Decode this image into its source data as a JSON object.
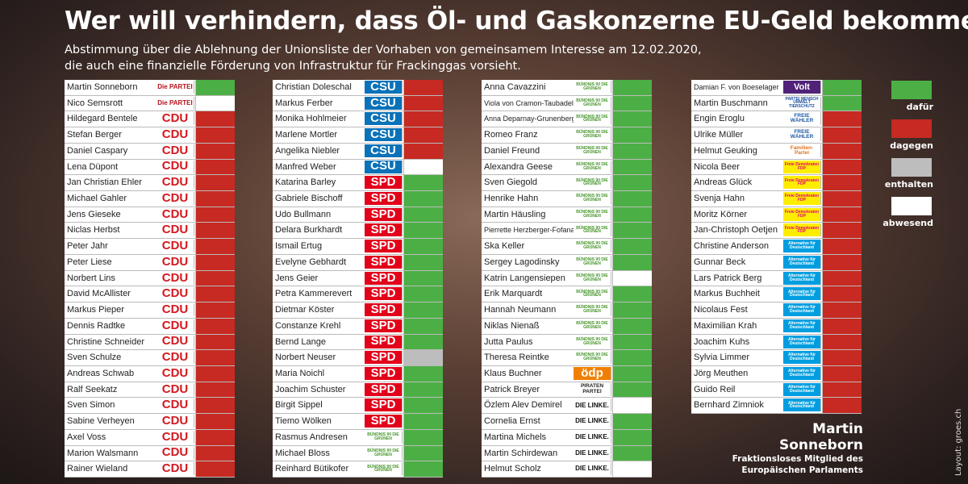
{
  "header": {
    "title": "Wer will verhindern, dass Öl- und Gaskonzerne EU-Geld bekommen?",
    "subtitle": [
      "Abstimmung über die Ablehnung der Unionsliste der Vorhaben von gemeinsamem Interesse am 12.02.2020,",
      "die auch eine finanzielle Förderung von Infrastruktur für Frackinggas vorsieht."
    ]
  },
  "legend": [
    {
      "label": "dafür",
      "color": "#4caf45"
    },
    {
      "label": "dagegen",
      "color": "#c62a22"
    },
    {
      "label": "enthalten",
      "color": "#bdbdbd"
    },
    {
      "label": "abwesend",
      "color": "#ffffff"
    }
  ],
  "parties": [
    {
      "label": "Die PARTEI",
      "color": "#b5121b",
      "bg": "#ffffff"
    },
    {
      "label": "CDU",
      "color": "#d4181f",
      "bg": "#ffffff"
    },
    {
      "label": "CSU",
      "color": "#ffffff",
      "bg": "#0a72b8"
    },
    {
      "label": "SPD",
      "color": "#ffffff",
      "bg": "#e2001a"
    },
    {
      "label": "BÜNDNIS 90 DIE GRÜNEN",
      "color": "#46962b",
      "bg": "#ffffff"
    },
    {
      "label": "ödp",
      "color": "#ffffff",
      "bg": "#f07f00"
    },
    {
      "label": "PIRATEN PARTEI",
      "color": "#222222",
      "bg": "#ffffff"
    },
    {
      "label": "DIE LINKE.",
      "color": "#111111",
      "bg": "#ffffff"
    },
    {
      "label": "Volt",
      "color": "#ffffff",
      "bg": "#502379"
    },
    {
      "label": "PARTEI MENSCH UMWELT TIERSCHUTZ",
      "color": "#1b4f9c",
      "bg": "#ffffff"
    },
    {
      "label": "FREIE WÄHLER",
      "color": "#1f5aa6",
      "bg": "#ffffff"
    },
    {
      "label": "Familien-Partei",
      "color": "#e2711d",
      "bg": "#ffffff"
    },
    {
      "label": "Freie Demokraten FDP",
      "color": "#e5007d",
      "bg": "#ffed00"
    },
    {
      "label": "Alternative für Deutschland",
      "color": "#ffffff",
      "bg": "#009ee0"
    }
  ],
  "columns": [
    {
      "rows": [
        {
          "name": "Martin Sonneborn",
          "party": "Die PARTEI",
          "vote": "dafür"
        },
        {
          "name": "Nico Semsrott",
          "party": "Die PARTEI",
          "vote": "abwesend"
        },
        {
          "name": "Hildegard Bentele",
          "party": "CDU",
          "vote": "dagegen"
        },
        {
          "name": "Stefan Berger",
          "party": "CDU",
          "vote": "dagegen"
        },
        {
          "name": "Daniel Caspary",
          "party": "CDU",
          "vote": "dagegen"
        },
        {
          "name": "Lena Düpont",
          "party": "CDU",
          "vote": "dagegen"
        },
        {
          "name": "Jan Christian Ehler",
          "party": "CDU",
          "vote": "dagegen"
        },
        {
          "name": "Michael Gahler",
          "party": "CDU",
          "vote": "dagegen"
        },
        {
          "name": "Jens Gieseke",
          "party": "CDU",
          "vote": "dagegen"
        },
        {
          "name": "Niclas Herbst",
          "party": "CDU",
          "vote": "dagegen"
        },
        {
          "name": "Peter Jahr",
          "party": "CDU",
          "vote": "dagegen"
        },
        {
          "name": "Peter Liese",
          "party": "CDU",
          "vote": "dagegen"
        },
        {
          "name": "Norbert Lins",
          "party": "CDU",
          "vote": "dagegen"
        },
        {
          "name": "David McAllister",
          "party": "CDU",
          "vote": "dagegen"
        },
        {
          "name": "Markus Pieper",
          "party": "CDU",
          "vote": "dagegen"
        },
        {
          "name": "Dennis Radtke",
          "party": "CDU",
          "vote": "dagegen"
        },
        {
          "name": "Christine Schneider",
          "party": "CDU",
          "vote": "dagegen"
        },
        {
          "name": "Sven Schulze",
          "party": "CDU",
          "vote": "dagegen"
        },
        {
          "name": "Andreas Schwab",
          "party": "CDU",
          "vote": "dagegen"
        },
        {
          "name": "Ralf Seekatz",
          "party": "CDU",
          "vote": "dagegen"
        },
        {
          "name": "Sven Simon",
          "party": "CDU",
          "vote": "dagegen"
        },
        {
          "name": "Sabine Verheyen",
          "party": "CDU",
          "vote": "dagegen"
        },
        {
          "name": "Axel Voss",
          "party": "CDU",
          "vote": "dagegen"
        },
        {
          "name": "Marion Walsmann",
          "party": "CDU",
          "vote": "dagegen"
        },
        {
          "name": "Rainer Wieland",
          "party": "CDU",
          "vote": "dagegen"
        }
      ]
    },
    {
      "rows": [
        {
          "name": "Christian Doleschal",
          "party": "CSU",
          "vote": "dagegen"
        },
        {
          "name": "Markus Ferber",
          "party": "CSU",
          "vote": "dagegen"
        },
        {
          "name": "Monika Hohlmeier",
          "party": "CSU",
          "vote": "dagegen"
        },
        {
          "name": "Marlene Mortler",
          "party": "CSU",
          "vote": "dagegen"
        },
        {
          "name": "Angelika Niebler",
          "party": "CSU",
          "vote": "dagegen"
        },
        {
          "name": "Manfred Weber",
          "party": "CSU",
          "vote": "abwesend"
        },
        {
          "name": "Katarina Barley",
          "party": "SPD",
          "vote": "dafür"
        },
        {
          "name": "Gabriele Bischoff",
          "party": "SPD",
          "vote": "dafür"
        },
        {
          "name": "Udo Bullmann",
          "party": "SPD",
          "vote": "dafür"
        },
        {
          "name": "Delara Burkhardt",
          "party": "SPD",
          "vote": "dafür"
        },
        {
          "name": "Ismail Ertug",
          "party": "SPD",
          "vote": "dafür"
        },
        {
          "name": "Evelyne Gebhardt",
          "party": "SPD",
          "vote": "dafür"
        },
        {
          "name": "Jens Geier",
          "party": "SPD",
          "vote": "dafür"
        },
        {
          "name": "Petra Kammerevert",
          "party": "SPD",
          "vote": "dafür"
        },
        {
          "name": "Dietmar Köster",
          "party": "SPD",
          "vote": "dafür"
        },
        {
          "name": "Constanze Krehl",
          "party": "SPD",
          "vote": "dafür"
        },
        {
          "name": "Bernd Lange",
          "party": "SPD",
          "vote": "dafür"
        },
        {
          "name": "Norbert Neuser",
          "party": "SPD",
          "vote": "enthalten"
        },
        {
          "name": "Maria Noichl",
          "party": "SPD",
          "vote": "dafür"
        },
        {
          "name": "Joachim Schuster",
          "party": "SPD",
          "vote": "dafür"
        },
        {
          "name": "Birgit Sippel",
          "party": "SPD",
          "vote": "dafür"
        },
        {
          "name": "Tiemo Wölken",
          "party": "SPD",
          "vote": "dafür"
        },
        {
          "name": "Rasmus Andresen",
          "party": "BÜNDNIS 90 DIE GRÜNEN",
          "vote": "dafür"
        },
        {
          "name": "Michael Bloss",
          "party": "BÜNDNIS 90 DIE GRÜNEN",
          "vote": "dafür"
        },
        {
          "name": "Reinhard Bütikofer",
          "party": "BÜNDNIS 90 DIE GRÜNEN",
          "vote": "dafür"
        }
      ]
    },
    {
      "rows": [
        {
          "name": "Anna Cavazzini",
          "party": "BÜNDNIS 90 DIE GRÜNEN",
          "vote": "dafür"
        },
        {
          "name": "Viola von Cramon-Taubadel",
          "party": "BÜNDNIS 90 DIE GRÜNEN",
          "vote": "dafür"
        },
        {
          "name": "Anna Deparnay-Grunenberg",
          "party": "BÜNDNIS 90 DIE GRÜNEN",
          "vote": "dafür"
        },
        {
          "name": "Romeo Franz",
          "party": "BÜNDNIS 90 DIE GRÜNEN",
          "vote": "dafür"
        },
        {
          "name": "Daniel Freund",
          "party": "BÜNDNIS 90 DIE GRÜNEN",
          "vote": "dafür"
        },
        {
          "name": "Alexandra Geese",
          "party": "BÜNDNIS 90 DIE GRÜNEN",
          "vote": "dafür"
        },
        {
          "name": "Sven Giegold",
          "party": "BÜNDNIS 90 DIE GRÜNEN",
          "vote": "dafür"
        },
        {
          "name": "Henrike Hahn",
          "party": "BÜNDNIS 90 DIE GRÜNEN",
          "vote": "dafür"
        },
        {
          "name": "Martin Häusling",
          "party": "BÜNDNIS 90 DIE GRÜNEN",
          "vote": "dafür"
        },
        {
          "name": "Pierrette Herzberger-Fofana",
          "party": "BÜNDNIS 90 DIE GRÜNEN",
          "vote": "dafür"
        },
        {
          "name": "Ska Keller",
          "party": "BÜNDNIS 90 DIE GRÜNEN",
          "vote": "dafür"
        },
        {
          "name": "Sergey Lagodinsky",
          "party": "BÜNDNIS 90 DIE GRÜNEN",
          "vote": "dafür"
        },
        {
          "name": "Katrin Langensiepen",
          "party": "BÜNDNIS 90 DIE GRÜNEN",
          "vote": "abwesend"
        },
        {
          "name": "Erik Marquardt",
          "party": "BÜNDNIS 90 DIE GRÜNEN",
          "vote": "dafür"
        },
        {
          "name": "Hannah Neumann",
          "party": "BÜNDNIS 90 DIE GRÜNEN",
          "vote": "dafür"
        },
        {
          "name": "Niklas Nienaß",
          "party": "BÜNDNIS 90 DIE GRÜNEN",
          "vote": "dafür"
        },
        {
          "name": "Jutta Paulus",
          "party": "BÜNDNIS 90 DIE GRÜNEN",
          "vote": "dafür"
        },
        {
          "name": "Theresa Reintke",
          "party": "BÜNDNIS 90 DIE GRÜNEN",
          "vote": "dafür"
        },
        {
          "name": "Klaus Buchner",
          "party": "ödp",
          "vote": "dafür"
        },
        {
          "name": "Patrick Breyer",
          "party": "PIRATEN PARTEI",
          "vote": "dafür"
        },
        {
          "name": "Özlem Alev Demirel",
          "party": "DIE LINKE.",
          "vote": "abwesend"
        },
        {
          "name": "Cornelia Ernst",
          "party": "DIE LINKE.",
          "vote": "dafür"
        },
        {
          "name": "Martina Michels",
          "party": "DIE LINKE.",
          "vote": "dafür"
        },
        {
          "name": "Martin Schirdewan",
          "party": "DIE LINKE.",
          "vote": "dafür"
        },
        {
          "name": "Helmut Scholz",
          "party": "DIE LINKE.",
          "vote": "abwesend"
        }
      ]
    },
    {
      "rows": [
        {
          "name": "Damian F. von Boeselager",
          "party": "Volt",
          "vote": "dafür"
        },
        {
          "name": "Martin Buschmann",
          "party": "PARTEI MENSCH UMWELT TIERSCHUTZ",
          "vote": "dafür"
        },
        {
          "name": "Engin Eroglu",
          "party": "FREIE WÄHLER",
          "vote": "dagegen"
        },
        {
          "name": "Ulrike Müller",
          "party": "FREIE WÄHLER",
          "vote": "dagegen"
        },
        {
          "name": "Helmut Geuking",
          "party": "Familien-Partei",
          "vote": "dagegen"
        },
        {
          "name": "Nicola Beer",
          "party": "Freie Demokraten FDP",
          "vote": "dagegen"
        },
        {
          "name": "Andreas Glück",
          "party": "Freie Demokraten FDP",
          "vote": "dagegen"
        },
        {
          "name": "Svenja Hahn",
          "party": "Freie Demokraten FDP",
          "vote": "dagegen"
        },
        {
          "name": "Moritz Körner",
          "party": "Freie Demokraten FDP",
          "vote": "dagegen"
        },
        {
          "name": "Jan-Christoph Oetjen",
          "party": "Freie Demokraten FDP",
          "vote": "dagegen"
        },
        {
          "name": "Christine Anderson",
          "party": "Alternative für Deutschland",
          "vote": "dagegen"
        },
        {
          "name": "Gunnar Beck",
          "party": "Alternative für Deutschland",
          "vote": "dagegen"
        },
        {
          "name": "Lars Patrick Berg",
          "party": "Alternative für Deutschland",
          "vote": "dagegen"
        },
        {
          "name": "Markus Buchheit",
          "party": "Alternative für Deutschland",
          "vote": "dagegen"
        },
        {
          "name": "Nicolaus Fest",
          "party": "Alternative für Deutschland",
          "vote": "dagegen"
        },
        {
          "name": "Maximilian Krah",
          "party": "Alternative für Deutschland",
          "vote": "dagegen"
        },
        {
          "name": "Joachim Kuhs",
          "party": "Alternative für Deutschland",
          "vote": "dagegen"
        },
        {
          "name": "Sylvia Limmer",
          "party": "Alternative für Deutschland",
          "vote": "dagegen"
        },
        {
          "name": "Jörg Meuthen",
          "party": "Alternative für Deutschland",
          "vote": "dagegen"
        },
        {
          "name": "Guido Reil",
          "party": "Alternative für Deutschland",
          "vote": "dagegen"
        },
        {
          "name": "Bernhard Zimniok",
          "party": "Alternative für Deutschland",
          "vote": "dagegen"
        }
      ]
    }
  ],
  "footer": {
    "name": "Martin Sonneborn",
    "role": [
      "Fraktionsloses Mitglied des",
      "Europäischen Parlaments"
    ],
    "credit": "Layout: groes.ch"
  }
}
